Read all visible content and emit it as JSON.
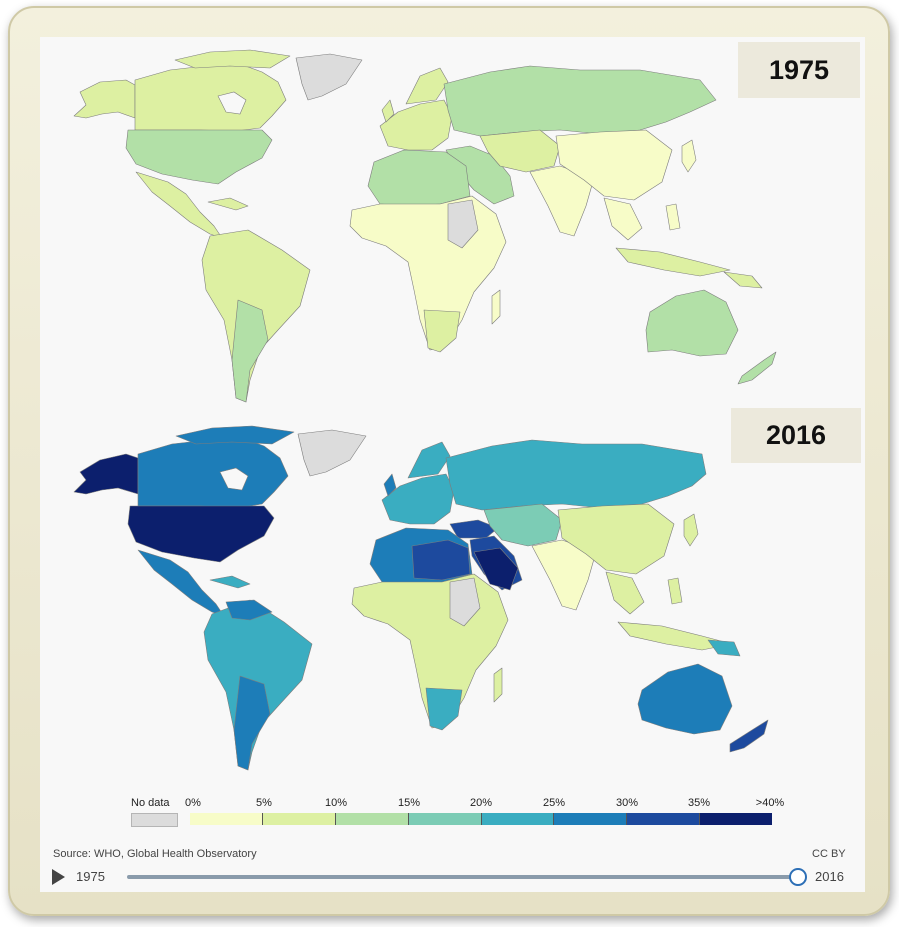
{
  "maps": [
    {
      "year_label": "1975"
    },
    {
      "year_label": "2016"
    }
  ],
  "legend": {
    "no_data_label": "No data",
    "no_data_color": "#dcdcdc",
    "ticks": [
      "0%",
      "5%",
      "10%",
      "15%",
      "20%",
      "25%",
      "30%",
      "35%",
      ">40%"
    ],
    "colors": [
      "#f7fcc8",
      "#ddf0a2",
      "#b2e0a7",
      "#7cccb5",
      "#3aadc1",
      "#1d7db8",
      "#1d4a9e",
      "#0c1f6d"
    ]
  },
  "source": "Source: WHO, Global Health Observatory",
  "license": "CC BY",
  "timeline": {
    "start_label": "1975",
    "end_label": "2016",
    "position": 1.0
  }
}
